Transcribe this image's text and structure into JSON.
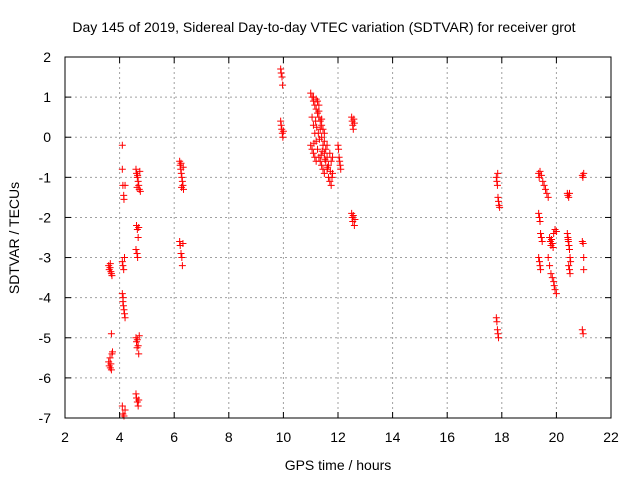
{
  "chart_data": {
    "type": "scatter",
    "title": "Day 145 of 2019, Sidereal Day-to-day VTEC variation (SDTVAR) for receiver grot",
    "xlabel": "GPS time / hours",
    "ylabel": "SDTVAR / TECUs",
    "xlim": [
      2,
      22
    ],
    "ylim": [
      -7,
      2
    ],
    "xticks": [
      2,
      4,
      6,
      8,
      10,
      12,
      14,
      16,
      18,
      20,
      22
    ],
    "yticks": [
      2,
      1,
      0,
      -1,
      -2,
      -3,
      -4,
      -5,
      -6,
      -7
    ],
    "grid": true,
    "marker": "+",
    "color": "#ff0000",
    "series": [
      {
        "name": "SDTVAR",
        "points": [
          [
            3.6,
            -3.2
          ],
          [
            3.62,
            -3.3
          ],
          [
            3.65,
            -3.25
          ],
          [
            3.68,
            -3.35
          ],
          [
            3.7,
            -3.4
          ],
          [
            3.72,
            -3.45
          ],
          [
            3.66,
            -3.15
          ],
          [
            3.6,
            -5.6
          ],
          [
            3.62,
            -5.7
          ],
          [
            3.65,
            -5.5
          ],
          [
            3.68,
            -5.65
          ],
          [
            3.7,
            -5.8
          ],
          [
            3.72,
            -5.4
          ],
          [
            3.74,
            -5.35
          ],
          [
            3.66,
            -5.75
          ],
          [
            3.7,
            -4.9
          ],
          [
            4.1,
            -0.2
          ],
          [
            4.1,
            -0.8
          ],
          [
            4.12,
            -1.2
          ],
          [
            4.15,
            -1.45
          ],
          [
            4.16,
            -1.55
          ],
          [
            4.2,
            -1.2
          ],
          [
            4.1,
            -3.1
          ],
          [
            4.12,
            -3.2
          ],
          [
            4.15,
            -3.3
          ],
          [
            4.18,
            -3.0
          ],
          [
            4.1,
            -3.9
          ],
          [
            4.12,
            -4.1
          ],
          [
            4.14,
            -4.2
          ],
          [
            4.16,
            -4.3
          ],
          [
            4.18,
            -4.4
          ],
          [
            4.2,
            -4.5
          ],
          [
            4.13,
            -4.0
          ],
          [
            4.1,
            -6.7
          ],
          [
            4.12,
            -6.9
          ],
          [
            4.16,
            -6.95
          ],
          [
            4.2,
            -6.8
          ],
          [
            4.6,
            -0.8
          ],
          [
            4.62,
            -0.9
          ],
          [
            4.65,
            -1.0
          ],
          [
            4.68,
            -1.1
          ],
          [
            4.7,
            -1.2
          ],
          [
            4.72,
            -1.3
          ],
          [
            4.74,
            -0.85
          ],
          [
            4.76,
            -1.35
          ],
          [
            4.64,
            -1.25
          ],
          [
            4.66,
            -0.95
          ],
          [
            4.62,
            -2.2
          ],
          [
            4.65,
            -2.3
          ],
          [
            4.68,
            -2.5
          ],
          [
            4.6,
            -2.8
          ],
          [
            4.64,
            -2.9
          ],
          [
            4.66,
            -3.0
          ],
          [
            4.7,
            -2.25
          ],
          [
            4.6,
            -5.0
          ],
          [
            4.62,
            -5.1
          ],
          [
            4.65,
            -5.05
          ],
          [
            4.68,
            -5.2
          ],
          [
            4.7,
            -5.4
          ],
          [
            4.72,
            -4.95
          ],
          [
            4.64,
            -5.25
          ],
          [
            4.6,
            -6.4
          ],
          [
            4.62,
            -6.5
          ],
          [
            4.65,
            -6.6
          ],
          [
            4.68,
            -6.7
          ],
          [
            4.7,
            -6.55
          ],
          [
            6.2,
            -0.6
          ],
          [
            6.22,
            -0.7
          ],
          [
            6.24,
            -0.8
          ],
          [
            6.26,
            -0.9
          ],
          [
            6.28,
            -1.0
          ],
          [
            6.3,
            -1.1
          ],
          [
            6.32,
            -1.2
          ],
          [
            6.34,
            -1.3
          ],
          [
            6.25,
            -0.65
          ],
          [
            6.27,
            -1.25
          ],
          [
            6.33,
            -0.75
          ],
          [
            6.2,
            -2.6
          ],
          [
            6.22,
            -2.7
          ],
          [
            6.25,
            -2.9
          ],
          [
            6.28,
            -3.0
          ],
          [
            6.3,
            -3.2
          ],
          [
            6.32,
            -2.65
          ],
          [
            9.9,
            1.7
          ],
          [
            9.92,
            1.6
          ],
          [
            9.95,
            1.5
          ],
          [
            9.97,
            1.3
          ],
          [
            9.9,
            0.4
          ],
          [
            9.92,
            0.3
          ],
          [
            9.94,
            0.2
          ],
          [
            9.96,
            0.1
          ],
          [
            9.98,
            0.0
          ],
          [
            10.0,
            0.15
          ],
          [
            11.0,
            1.1
          ],
          [
            11.05,
            1.0
          ],
          [
            11.1,
            0.9
          ],
          [
            11.15,
            0.8
          ],
          [
            11.2,
            0.7
          ],
          [
            11.25,
            0.6
          ],
          [
            11.3,
            0.5
          ],
          [
            11.35,
            0.4
          ],
          [
            11.4,
            0.3
          ],
          [
            11.45,
            0.2
          ],
          [
            11.5,
            0.1
          ],
          [
            11.05,
            0.5
          ],
          [
            11.1,
            0.3
          ],
          [
            11.15,
            0.1
          ],
          [
            11.2,
            -0.1
          ],
          [
            11.25,
            -0.3
          ],
          [
            11.3,
            -0.5
          ],
          [
            11.35,
            -0.6
          ],
          [
            11.4,
            -0.7
          ],
          [
            11.45,
            -0.8
          ],
          [
            11.5,
            -0.9
          ],
          [
            11.0,
            -0.2
          ],
          [
            11.05,
            -0.3
          ],
          [
            11.1,
            -0.4
          ],
          [
            11.15,
            -0.5
          ],
          [
            11.2,
            -0.6
          ],
          [
            11.25,
            0.9
          ],
          [
            11.3,
            0.8
          ],
          [
            11.35,
            0.2
          ],
          [
            11.4,
            0.0
          ],
          [
            11.45,
            -0.2
          ],
          [
            11.5,
            -0.4
          ],
          [
            11.55,
            -0.6
          ],
          [
            11.6,
            -0.8
          ],
          [
            11.65,
            -1.0
          ],
          [
            11.7,
            -1.1
          ],
          [
            11.75,
            -1.2
          ],
          [
            11.8,
            -0.9
          ],
          [
            11.55,
            -0.3
          ],
          [
            11.6,
            -0.5
          ],
          [
            11.65,
            -0.7
          ],
          [
            11.1,
            1.0
          ],
          [
            11.2,
            0.95
          ],
          [
            11.3,
            0.65
          ],
          [
            11.4,
            0.45
          ],
          [
            11.5,
            -0.1
          ],
          [
            11.6,
            -0.2
          ],
          [
            11.7,
            -0.4
          ],
          [
            11.75,
            -0.6
          ],
          [
            11.8,
            -0.5
          ],
          [
            11.12,
            -0.15
          ],
          [
            11.22,
            0.25
          ],
          [
            11.32,
            -0.05
          ],
          [
            11.42,
            -0.35
          ],
          [
            11.52,
            -0.55
          ],
          [
            11.62,
            -0.75
          ],
          [
            11.72,
            -0.85
          ],
          [
            11.78,
            -1.0
          ],
          [
            11.18,
            0.4
          ],
          [
            11.28,
            0.1
          ],
          [
            11.38,
            -0.45
          ],
          [
            12.0,
            -0.2
          ],
          [
            12.02,
            -0.3
          ],
          [
            12.04,
            -0.5
          ],
          [
            12.06,
            -0.6
          ],
          [
            12.08,
            -0.7
          ],
          [
            12.1,
            -0.8
          ],
          [
            12.5,
            0.5
          ],
          [
            12.52,
            0.4
          ],
          [
            12.54,
            0.3
          ],
          [
            12.56,
            0.2
          ],
          [
            12.58,
            0.45
          ],
          [
            12.6,
            0.35
          ],
          [
            12.5,
            -1.9
          ],
          [
            12.52,
            -2.0
          ],
          [
            12.54,
            -2.1
          ],
          [
            12.56,
            -1.95
          ],
          [
            12.6,
            -2.2
          ],
          [
            12.62,
            -2.05
          ],
          [
            17.8,
            -1.0
          ],
          [
            17.82,
            -1.1
          ],
          [
            17.84,
            -1.2
          ],
          [
            17.86,
            -1.5
          ],
          [
            17.88,
            -1.6
          ],
          [
            17.9,
            -1.7
          ],
          [
            17.92,
            -1.75
          ],
          [
            17.85,
            -0.9
          ],
          [
            17.8,
            -4.5
          ],
          [
            17.82,
            -4.6
          ],
          [
            17.84,
            -4.8
          ],
          [
            17.86,
            -4.9
          ],
          [
            17.88,
            -5.0
          ],
          [
            19.35,
            -0.9
          ],
          [
            19.37,
            -1.0
          ],
          [
            19.4,
            -0.85
          ],
          [
            19.45,
            -0.95
          ],
          [
            19.5,
            -1.1
          ],
          [
            19.55,
            -1.2
          ],
          [
            19.6,
            -1.3
          ],
          [
            19.65,
            -1.4
          ],
          [
            19.7,
            -1.5
          ],
          [
            19.35,
            -1.9
          ],
          [
            19.38,
            -2.0
          ],
          [
            19.4,
            -2.1
          ],
          [
            19.42,
            -2.4
          ],
          [
            19.45,
            -2.5
          ],
          [
            19.48,
            -2.6
          ],
          [
            19.35,
            -3.0
          ],
          [
            19.38,
            -3.1
          ],
          [
            19.4,
            -3.2
          ],
          [
            19.42,
            -3.3
          ],
          [
            19.75,
            -2.5
          ],
          [
            19.78,
            -2.6
          ],
          [
            19.8,
            -2.7
          ],
          [
            19.85,
            -2.65
          ],
          [
            19.9,
            -2.4
          ],
          [
            19.95,
            -2.3
          ],
          [
            20.0,
            -2.35
          ],
          [
            19.82,
            -2.55
          ],
          [
            19.88,
            -2.75
          ],
          [
            19.7,
            -3.0
          ],
          [
            19.75,
            -3.2
          ],
          [
            19.8,
            -3.4
          ],
          [
            19.85,
            -3.5
          ],
          [
            19.9,
            -3.6
          ],
          [
            19.95,
            -3.8
          ],
          [
            20.0,
            -3.9
          ],
          [
            19.92,
            -3.7
          ],
          [
            20.4,
            -1.4
          ],
          [
            20.42,
            -1.45
          ],
          [
            20.45,
            -1.5
          ],
          [
            20.48,
            -1.4
          ],
          [
            20.4,
            -2.4
          ],
          [
            20.42,
            -2.5
          ],
          [
            20.44,
            -2.6
          ],
          [
            20.46,
            -2.7
          ],
          [
            20.48,
            -2.8
          ],
          [
            20.5,
            -3.0
          ],
          [
            20.52,
            -3.1
          ],
          [
            20.45,
            -3.2
          ],
          [
            20.48,
            -3.3
          ],
          [
            20.5,
            -3.4
          ],
          [
            20.43,
            -2.55
          ],
          [
            20.95,
            -0.95
          ],
          [
            20.97,
            -1.0
          ],
          [
            21.0,
            -0.9
          ],
          [
            20.95,
            -2.6
          ],
          [
            20.98,
            -2.65
          ],
          [
            21.0,
            -3.0
          ],
          [
            21.0,
            -3.3
          ],
          [
            20.95,
            -4.8
          ],
          [
            20.98,
            -4.9
          ]
        ]
      }
    ]
  }
}
